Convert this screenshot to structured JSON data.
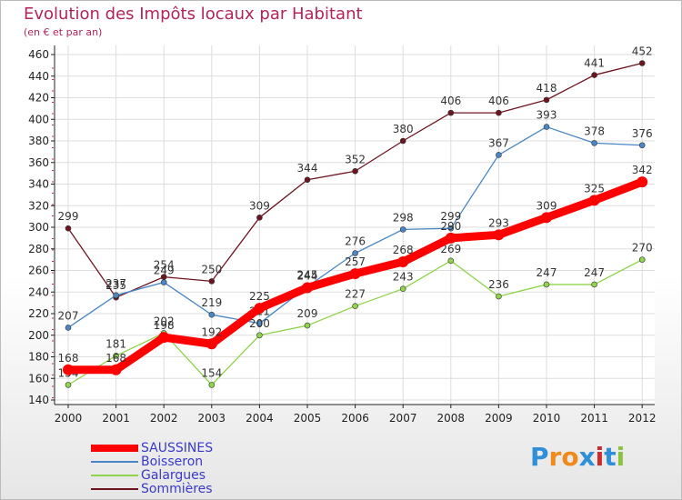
{
  "header": {
    "title": "Evolution des Impôts locaux par Habitant",
    "subtitle": "(en € et par an)"
  },
  "logo": {
    "text": "Proxiti",
    "letters": [
      "P",
      "r",
      "o",
      "x",
      "i",
      "t",
      "i"
    ],
    "colors": [
      "#2f8fd8",
      "#f08a1c",
      "#f08a1c",
      "#2f8fd8",
      "#cc2b2b",
      "#2f8fd8",
      "#8ac43f"
    ]
  },
  "chart_data": {
    "type": "line",
    "title": "Evolution des Impôts locaux par Habitant",
    "subtitle": "(en € et par an)",
    "xlabel": "",
    "ylabel": "",
    "categories": [
      "2000",
      "2001",
      "2002",
      "2003",
      "2004",
      "2005",
      "2006",
      "2007",
      "2008",
      "2009",
      "2010",
      "2011",
      "2012"
    ],
    "ylim": [
      140,
      460
    ],
    "yticks": [
      140,
      160,
      180,
      200,
      220,
      240,
      260,
      280,
      300,
      320,
      340,
      360,
      380,
      400,
      420,
      440,
      460
    ],
    "grid": true,
    "legend_position": "bottom-left",
    "series": [
      {
        "name": "Sommières",
        "color": "#6e1420",
        "values": [
          299,
          235,
          254,
          250,
          309,
          344,
          352,
          380,
          406,
          406,
          418,
          441,
          452
        ]
      },
      {
        "name": "Boisseron",
        "color": "#4a87c4",
        "values": [
          207,
          237,
          249,
          219,
          211,
          245,
          276,
          298,
          299,
          367,
          393,
          378,
          376
        ]
      },
      {
        "name": "Galargues",
        "color": "#8fd44a",
        "values": [
          154,
          181,
          202,
          154,
          200,
          209,
          227,
          243,
          269,
          236,
          247,
          247,
          270
        ]
      },
      {
        "name": "SAUSSINES",
        "color": "#ff0000",
        "values": [
          168,
          168,
          198,
          192,
          225,
          244,
          257,
          268,
          290,
          293,
          309,
          325,
          342
        ]
      }
    ],
    "legend_order": [
      "SAUSSINES",
      "Boisseron",
      "Galargues",
      "Sommières"
    ]
  }
}
